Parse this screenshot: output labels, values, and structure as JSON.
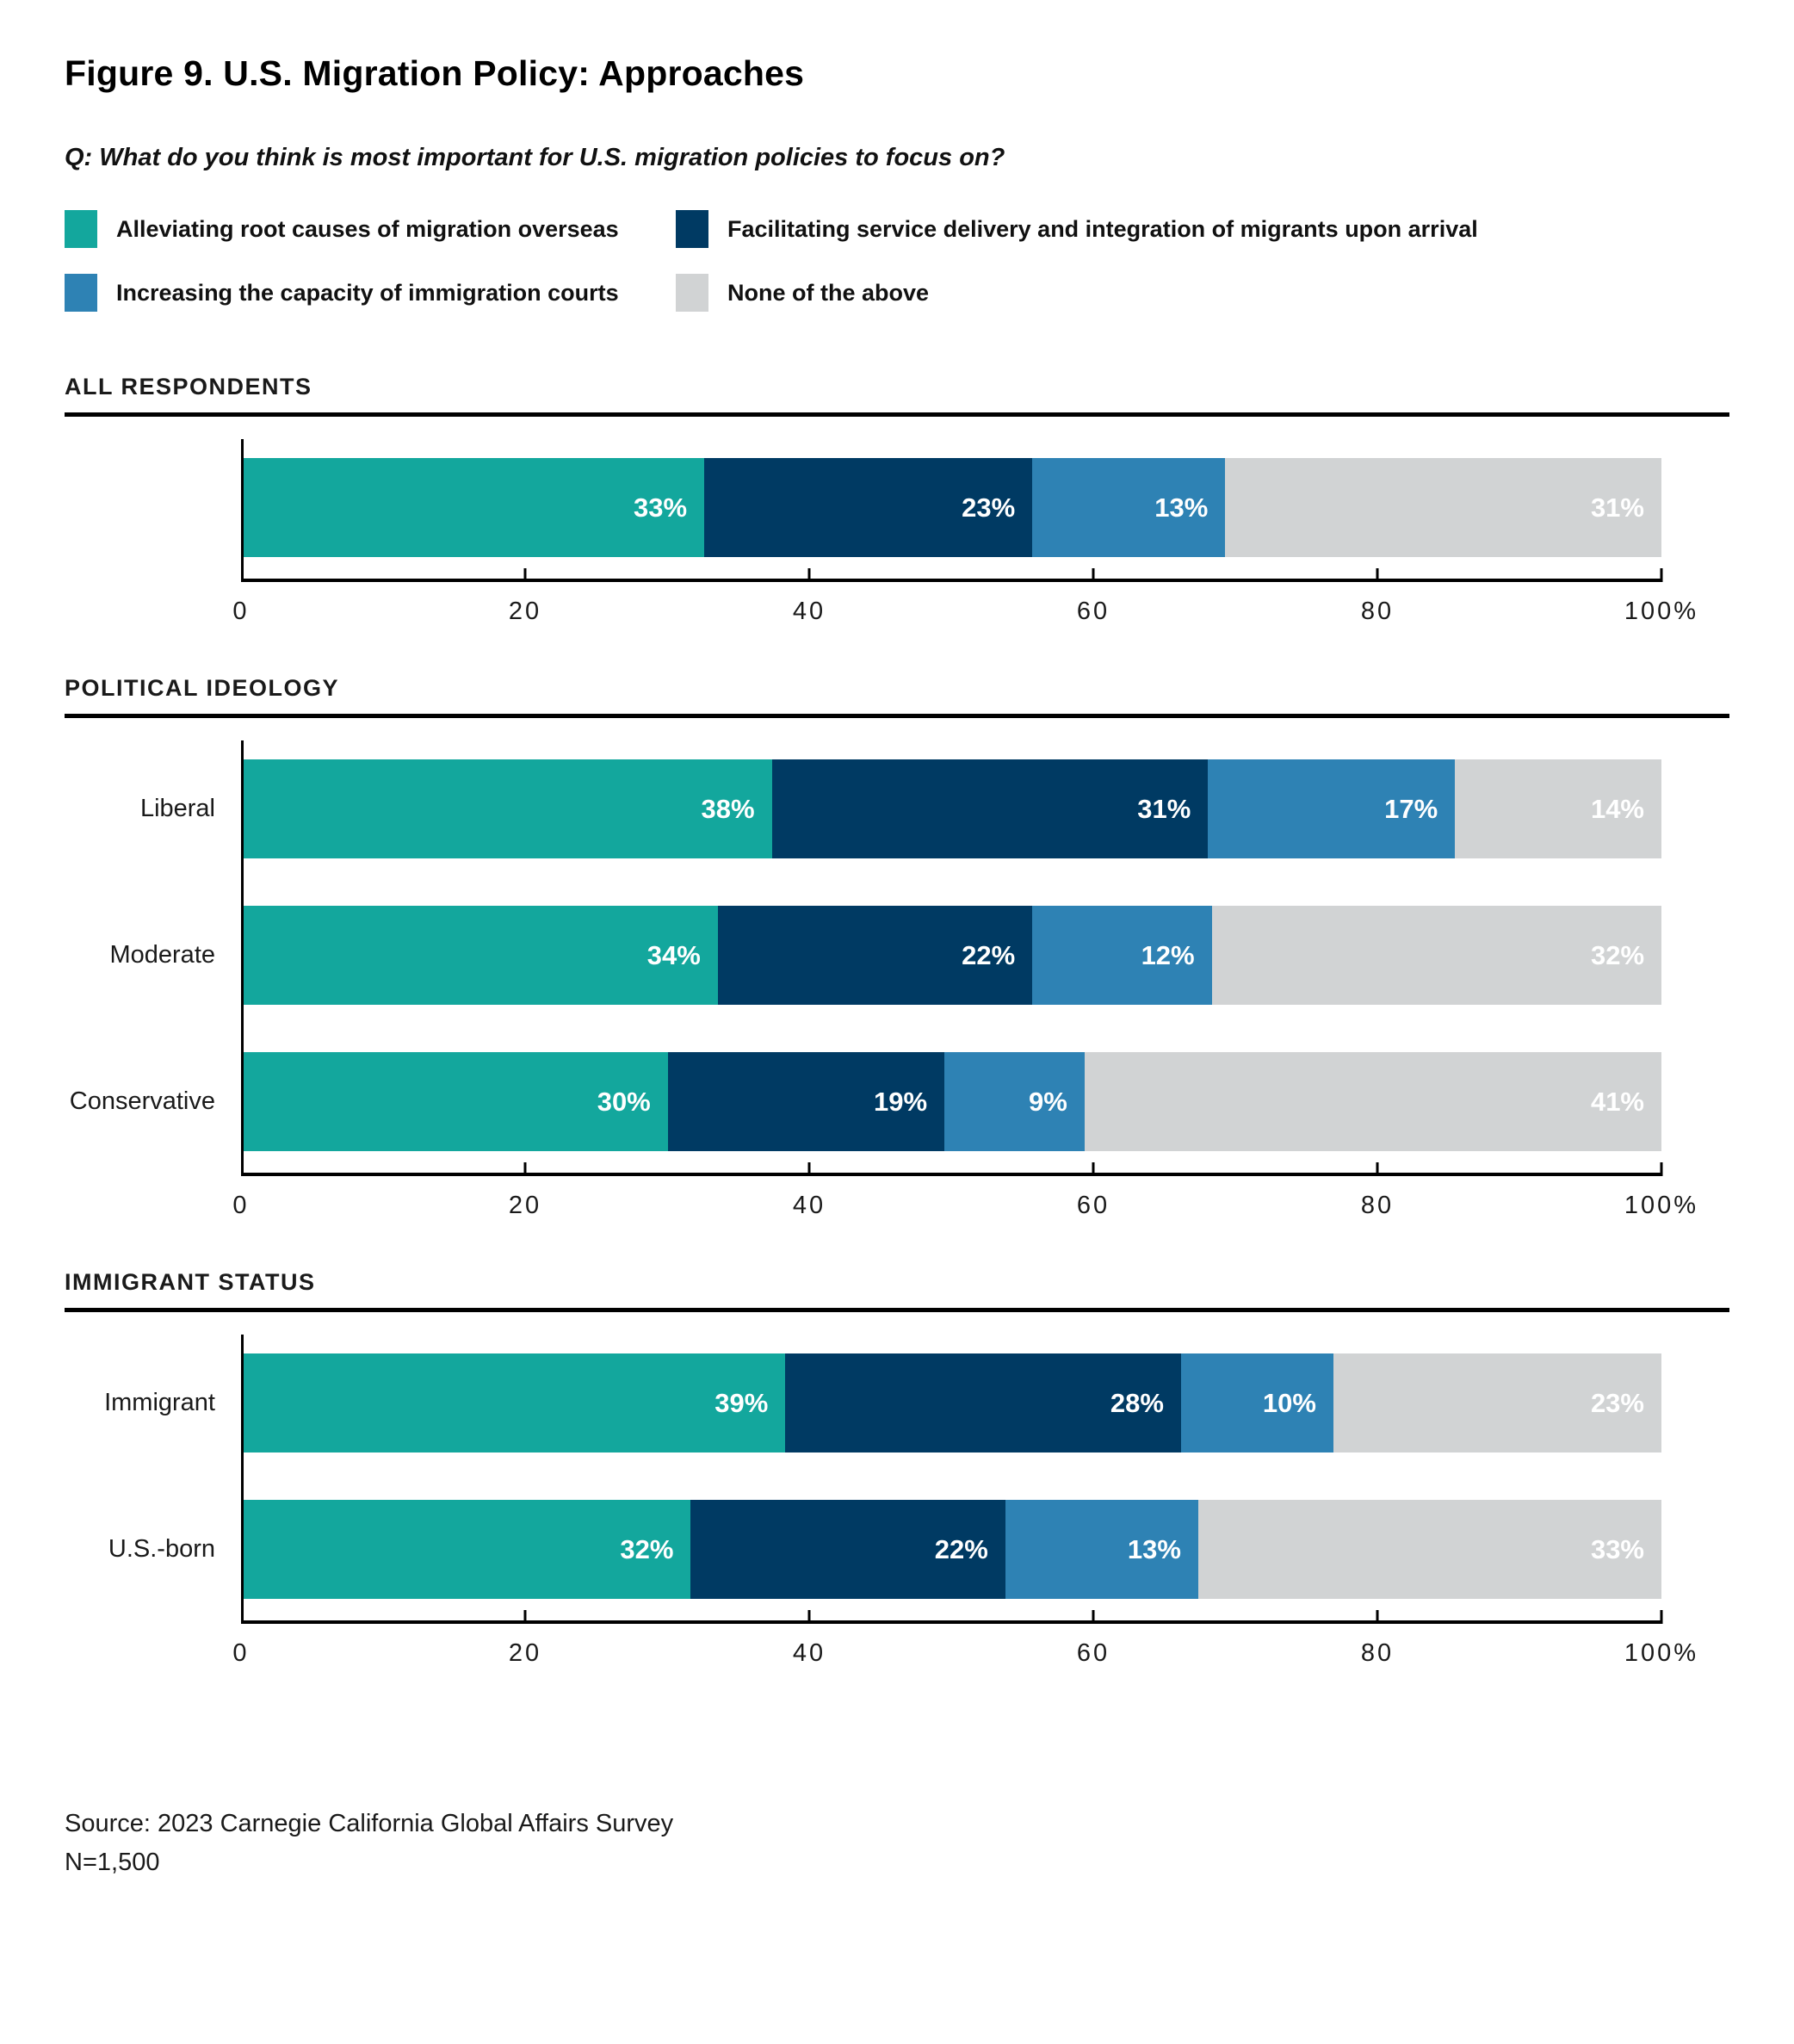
{
  "title": "Figure 9. U.S. Migration Policy: Approaches",
  "question": "Q: What do you think is most important for U.S. migration policies to focus on?",
  "colors": {
    "teal": "#13A79D",
    "navy": "#003A63",
    "blue": "#2E82B4",
    "gray": "#D1D3D4"
  },
  "legend": [
    {
      "label": "Alleviating root causes of migration overseas",
      "color": "#13A79D"
    },
    {
      "label": "Facilitating service delivery and integration of migrants upon arrival",
      "color": "#003A63"
    },
    {
      "label": "Increasing the capacity of immigration courts",
      "color": "#2E82B4"
    },
    {
      "label": "None of the above",
      "color": "#D1D3D4"
    }
  ],
  "axis": {
    "ticks": [
      "0",
      "20",
      "40",
      "60",
      "80",
      "100%"
    ],
    "tick_positions": [
      0,
      20,
      40,
      60,
      80,
      100
    ],
    "min": 0,
    "max": 100
  },
  "chart_data": [
    {
      "type": "bar",
      "stacked": true,
      "orientation": "horizontal",
      "section_title": "ALL RESPONDENTS",
      "categories": [
        ""
      ],
      "series": [
        {
          "name": "Alleviating root causes of migration overseas",
          "values": [
            33
          ]
        },
        {
          "name": "Facilitating service delivery and integration of migrants upon arrival",
          "values": [
            23
          ]
        },
        {
          "name": "Increasing the capacity of immigration courts",
          "values": [
            13
          ]
        },
        {
          "name": "None of the above",
          "values": [
            31
          ]
        }
      ],
      "xlim": [
        0,
        100
      ]
    },
    {
      "type": "bar",
      "stacked": true,
      "orientation": "horizontal",
      "section_title": "POLITICAL IDEOLOGY",
      "categories": [
        "Liberal",
        "Moderate",
        "Conservative"
      ],
      "series": [
        {
          "name": "Alleviating root causes of migration overseas",
          "values": [
            38,
            34,
            30
          ]
        },
        {
          "name": "Facilitating service delivery and integration of migrants upon arrival",
          "values": [
            31,
            22,
            19
          ]
        },
        {
          "name": "Increasing the capacity of immigration courts",
          "values": [
            17,
            12,
            9
          ]
        },
        {
          "name": "None of the above",
          "values": [
            14,
            32,
            41
          ]
        }
      ],
      "xlim": [
        0,
        100
      ]
    },
    {
      "type": "bar",
      "stacked": true,
      "orientation": "horizontal",
      "section_title": "IMMIGRANT STATUS",
      "categories": [
        "Immigrant",
        "U.S.-born"
      ],
      "series": [
        {
          "name": "Alleviating root causes of migration overseas",
          "values": [
            39,
            32
          ]
        },
        {
          "name": "Facilitating service delivery and integration of migrants upon arrival",
          "values": [
            28,
            22
          ]
        },
        {
          "name": "Increasing the capacity of immigration courts",
          "values": [
            10,
            13
          ]
        },
        {
          "name": "None of the above",
          "values": [
            23,
            33
          ]
        }
      ],
      "xlim": [
        0,
        100
      ]
    }
  ],
  "source": "Source: 2023 Carnegie California Global Affairs Survey",
  "n": "N=1,500"
}
